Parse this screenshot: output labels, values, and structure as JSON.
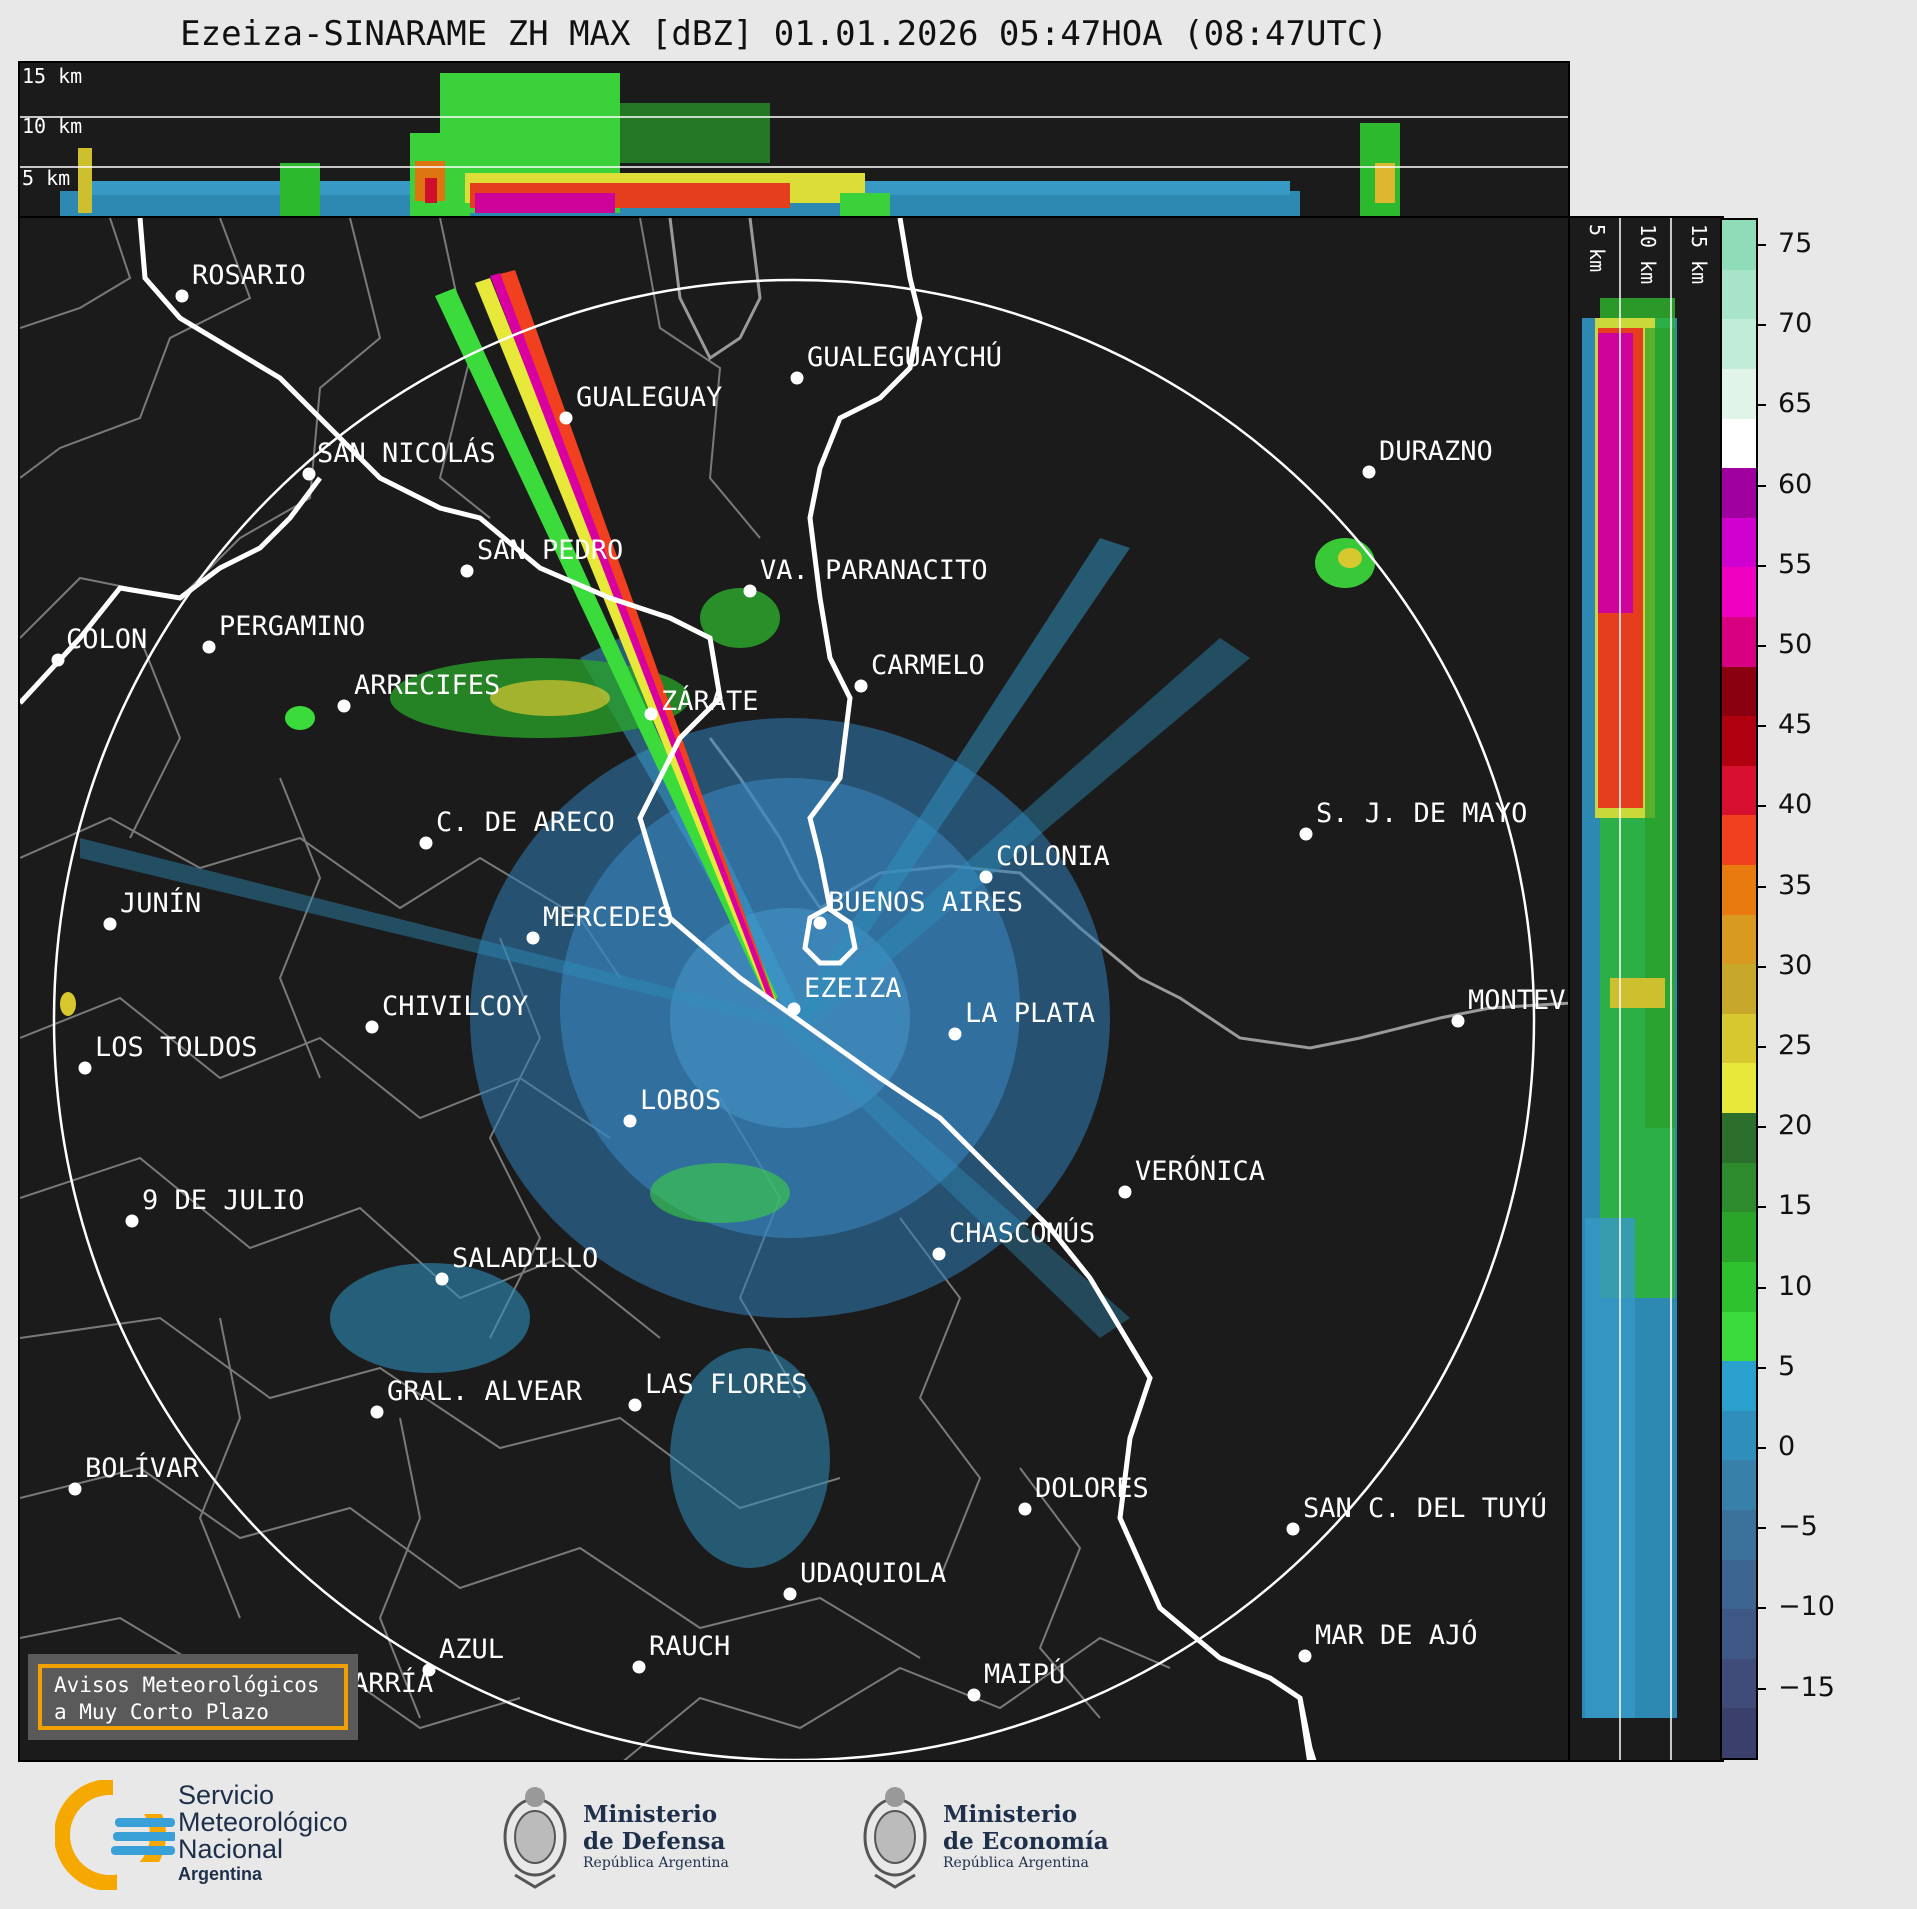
{
  "title": "Ezeiza-SINARAME ZH MAX [dBZ] 01.01.2026 05:47HOA (08:47UTC)",
  "top_panel": {
    "height_labels": [
      "15 km",
      "10 km",
      "5 km"
    ]
  },
  "side_panel": {
    "height_labels": [
      "5 km",
      "10 km",
      "15 km"
    ]
  },
  "colorbar": {
    "unit": "dBZ",
    "ticks": [
      "75",
      "70",
      "65",
      "60",
      "55",
      "50",
      "45",
      "40",
      "35",
      "30",
      "25",
      "20",
      "15",
      "10",
      "5",
      "0",
      "−5",
      "−10",
      "−15"
    ],
    "colors": [
      "#3b3f6b",
      "#3f4c7a",
      "#3e5785",
      "#3d6591",
      "#3a729c",
      "#3680aa",
      "#2f8ebb",
      "#2aa0cf",
      "#3cdb3c",
      "#2fc22f",
      "#2aa52a",
      "#2d8a2d",
      "#2c6f2c",
      "#e8e83a",
      "#d8c830",
      "#c8a82a",
      "#d89a20",
      "#e87a10",
      "#f04020",
      "#d81030",
      "#b00010",
      "#8a0010",
      "#d80080",
      "#f000c0",
      "#d000d0",
      "#a000a0",
      "#ffffff",
      "#e0f5e8",
      "#c0ecd8",
      "#a8e4c8",
      "#90dcb8"
    ]
  },
  "cities": [
    {
      "name": "ROSARIO"
    },
    {
      "name": "GUALEGUAYCHÚ"
    },
    {
      "name": "GUALEGUAY"
    },
    {
      "name": "SAN NICOLÁS"
    },
    {
      "name": "DURAZNO"
    },
    {
      "name": "SAN PEDRO"
    },
    {
      "name": "VA. PARANACITO"
    },
    {
      "name": "COLON"
    },
    {
      "name": "PERGAMINO"
    },
    {
      "name": "CARMELO"
    },
    {
      "name": "ARRECIFES"
    },
    {
      "name": "ZÁRATE"
    },
    {
      "name": "S. J. DE MAYO"
    },
    {
      "name": "C. DE ARECO"
    },
    {
      "name": "COLONIA"
    },
    {
      "name": "JUNÍN"
    },
    {
      "name": "BUENOS AIRES"
    },
    {
      "name": "MERCEDES"
    },
    {
      "name": "EZEIZA"
    },
    {
      "name": "MONTEVIDEO"
    },
    {
      "name": "CHIVILCOY"
    },
    {
      "name": "LA PLATA"
    },
    {
      "name": "LOS TOLDOS"
    },
    {
      "name": "LOBOS"
    },
    {
      "name": "VERÓNICA"
    },
    {
      "name": "9 DE JULIO"
    },
    {
      "name": "CHASCOMÚS"
    },
    {
      "name": "SALADILLO"
    },
    {
      "name": "GRAL. ALVEAR"
    },
    {
      "name": "LAS FLORES"
    },
    {
      "name": "BOLÍVAR"
    },
    {
      "name": "DOLORES"
    },
    {
      "name": "SAN C. DEL TUYÚ"
    },
    {
      "name": "UDAQUIOLA"
    },
    {
      "name": "AZUL"
    },
    {
      "name": "RAUCH"
    },
    {
      "name": "MAR DE AJÓ"
    },
    {
      "name": "MAIPÚ"
    },
    {
      "name": "OLAVARRÍA"
    }
  ],
  "warning_box": {
    "line1": "Avisos Meteorológicos",
    "line2": "a Muy Corto Plazo"
  },
  "footer": {
    "smn": {
      "line1": "Servicio",
      "line2": "Meteorológico",
      "line3": "Nacional",
      "line4": "Argentina"
    },
    "defensa": {
      "line1": "Ministerio",
      "line2": "de Defensa",
      "line3": "República Argentina"
    },
    "economia": {
      "line1": "Ministerio",
      "line2": "de Economía",
      "line3": "República Argentina"
    }
  }
}
